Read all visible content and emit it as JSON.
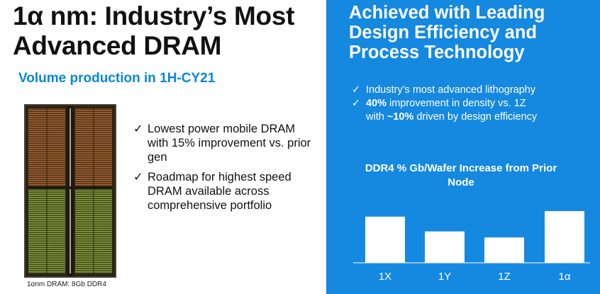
{
  "left": {
    "title_line1": "1α nm: Industry’s Most",
    "title_line2": "Advanced DRAM",
    "subtitle": "Volume production in 1H-CY21",
    "die_caption": "1αnm DRAM: 8Gb DDR4",
    "bullets": [
      {
        "check": "✓",
        "text": "Lowest power mobile DRAM with 15% improvement vs. prior gen"
      },
      {
        "check": "✓",
        "text": "Roadmap for highest speed DRAM available across comprehensive portfolio"
      }
    ]
  },
  "right": {
    "title_line1": "Achieved with Leading",
    "title_line2": "Design Efficiency and",
    "title_line3": "Process Technology",
    "bullet1": {
      "check": "✓",
      "text": "Industry’s most advanced lithography"
    },
    "bullet2": {
      "check": "✓",
      "bold1": "40%",
      "text1": " improvement in density vs. 1Z",
      "text2a": "with ",
      "bold2": "~10%",
      "text2b": " driven by design efficiency"
    },
    "background_color": "#1588e0"
  },
  "chart_data": {
    "type": "bar",
    "title": "DDR4 % Gb/Wafer Increase from Prior Node",
    "categories": [
      "1X",
      "1Y",
      "1Z",
      "1α"
    ],
    "values": [
      1.0,
      0.68,
      0.55,
      1.12
    ],
    "bar_color": "#ffffff",
    "axis_color": "#ffffff",
    "grid": false
  }
}
